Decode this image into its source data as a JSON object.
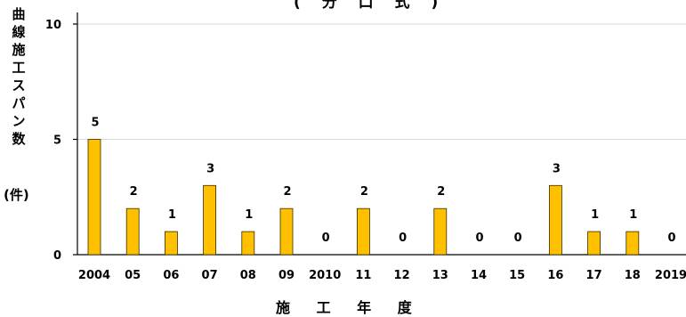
{
  "title": "( 分 口 式 )",
  "ylabel_chars": [
    "曲",
    "線",
    "施",
    "工",
    "ス",
    "パ",
    "ン",
    "数"
  ],
  "unit": "(件)",
  "xlabel": "施 工 年 度",
  "colors": {
    "bar": "#FFC000",
    "bar_stroke": "#3a2a00",
    "grid": "#d9d9d9",
    "axis": "#000000"
  },
  "chart_data": {
    "type": "bar",
    "categories": [
      "2004",
      "05",
      "06",
      "07",
      "08",
      "09",
      "2010",
      "11",
      "12",
      "13",
      "14",
      "15",
      "16",
      "17",
      "18",
      "2019"
    ],
    "values": [
      5,
      2,
      1,
      3,
      1,
      2,
      0,
      2,
      0,
      2,
      0,
      0,
      3,
      1,
      1,
      0
    ],
    "ylim": [
      0,
      10
    ],
    "yticks": [
      "0",
      "5",
      "10"
    ],
    "grid": true
  }
}
